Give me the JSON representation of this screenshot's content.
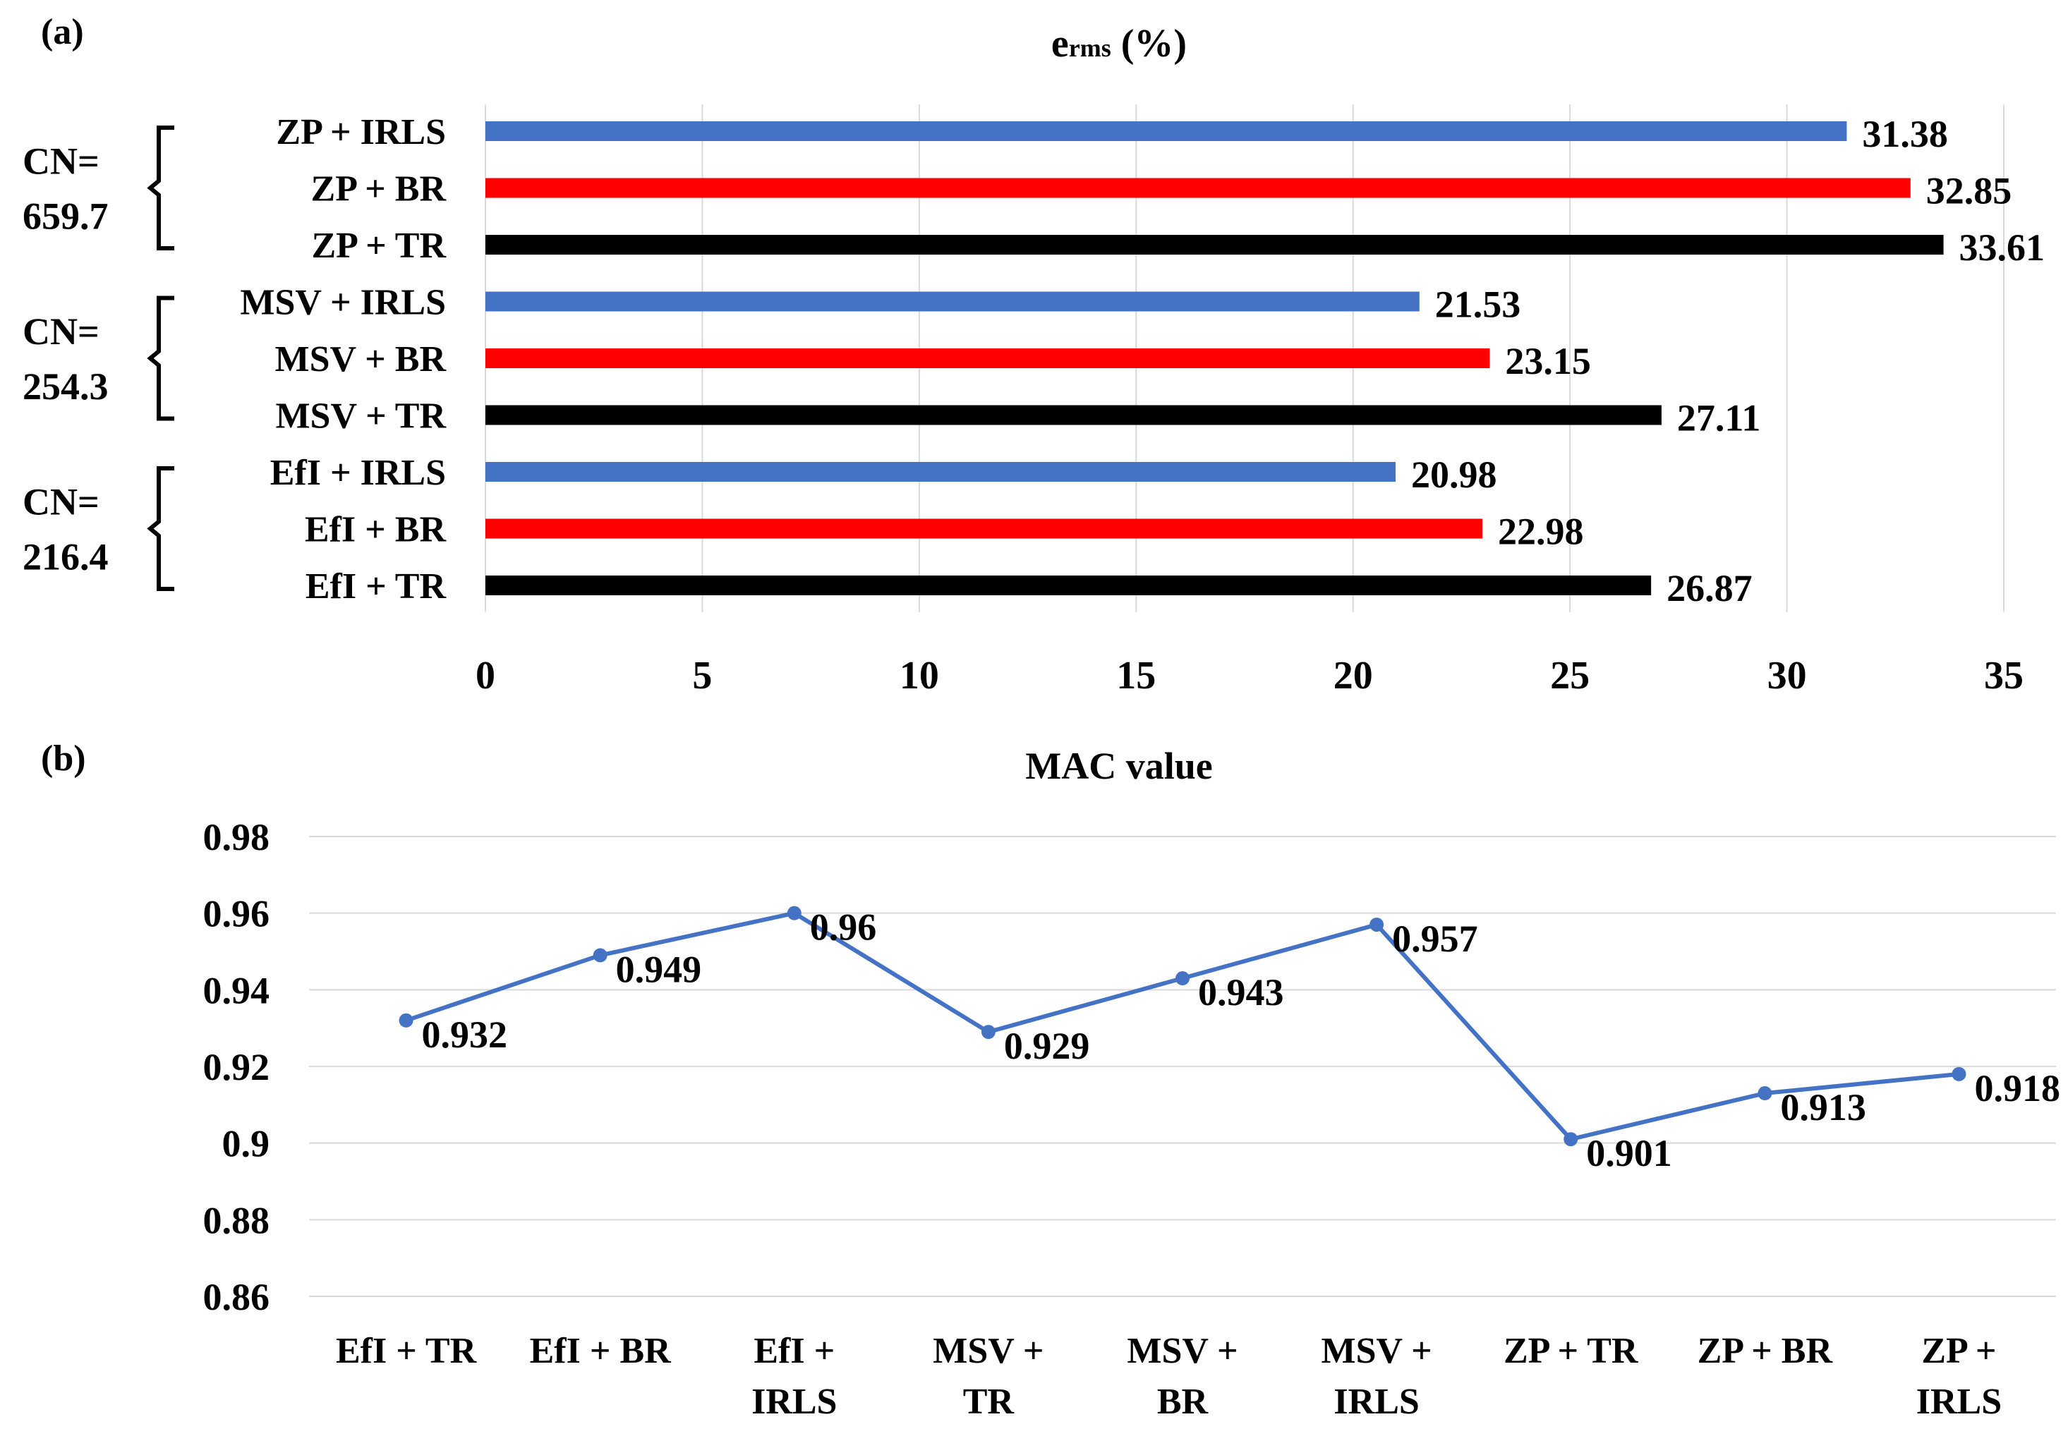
{
  "chart_data": [
    {
      "panel_label": "(a)",
      "type": "bar",
      "orientation": "horizontal",
      "title_main": "e",
      "title_sub": "rms",
      "title_suffix": " (%)",
      "categories": [
        "ZP + IRLS",
        "ZP + BR",
        "ZP + TR",
        "MSV + IRLS",
        "MSV + BR",
        "MSV + TR",
        "EfI + IRLS",
        "EfI + BR",
        "EfI + TR"
      ],
      "values": [
        31.38,
        32.85,
        33.61,
        21.53,
        23.15,
        27.11,
        20.98,
        22.98,
        26.87
      ],
      "value_labels": [
        "31.38",
        "32.85",
        "33.61",
        "21.53",
        "23.15",
        "27.11",
        "20.98",
        "22.98",
        "26.87"
      ],
      "bar_colors": [
        "#4472c4",
        "#ff0000",
        "#000000",
        "#4472c4",
        "#ff0000",
        "#000000",
        "#4472c4",
        "#ff0000",
        "#000000"
      ],
      "groups": [
        {
          "label_line1": "CN=",
          "label_line2": "659.7"
        },
        {
          "label_line1": "CN=",
          "label_line2": "254.3"
        },
        {
          "label_line1": "CN=",
          "label_line2": "216.4"
        }
      ],
      "xlim": [
        0,
        35
      ],
      "xticks": [
        "0",
        "5",
        "10",
        "15",
        "20",
        "25",
        "30",
        "35"
      ],
      "grid": "vertical"
    },
    {
      "panel_label": "(b)",
      "type": "line",
      "title": "MAC value",
      "categories": [
        [
          "EfI + TR"
        ],
        [
          "EfI + BR"
        ],
        [
          "EfI +",
          "IRLS"
        ],
        [
          "MSV +",
          "TR"
        ],
        [
          "MSV +",
          "BR"
        ],
        [
          "MSV +",
          "IRLS"
        ],
        [
          "ZP + TR"
        ],
        [
          "ZP + BR"
        ],
        [
          "ZP +",
          "IRLS"
        ]
      ],
      "values": [
        0.932,
        0.949,
        0.96,
        0.929,
        0.943,
        0.957,
        0.901,
        0.913,
        0.918
      ],
      "value_labels": [
        "0.932",
        "0.949",
        "0.96",
        "0.929",
        "0.943",
        "0.957",
        "0.901",
        "0.913",
        "0.918"
      ],
      "ylim": [
        0.86,
        0.98
      ],
      "yticks": [
        "0.98",
        "0.96",
        "0.94",
        "0.92",
        "0.9",
        "0.88",
        "0.86"
      ],
      "line_color": "#4472c4",
      "grid": "horizontal"
    }
  ]
}
